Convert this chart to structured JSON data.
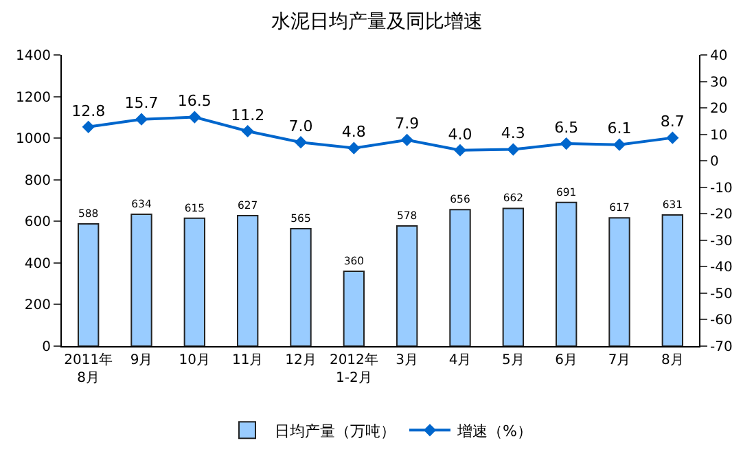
{
  "chart_data": {
    "type": "bar",
    "title": "水泥日均产量及同比增速",
    "categories": [
      "2011年\n8月",
      "9月",
      "10月",
      "11月",
      "12月",
      "2012年\n1-2月",
      "3月",
      "4月",
      "5月",
      "6月",
      "7月",
      "8月"
    ],
    "series": [
      {
        "name": "日均产量（万吨）",
        "color": "#99ccff",
        "values": [
          588,
          634,
          615,
          627,
          565,
          360,
          578,
          656,
          662,
          691,
          617,
          631
        ],
        "value_labels": [
          "588",
          "634",
          "615",
          "627",
          "565",
          "360",
          "578",
          "656",
          "662",
          "691",
          "617",
          "631"
        ]
      },
      {
        "name": "增速（%）",
        "type": "line",
        "axis": "y2",
        "color": "#0066cc",
        "marker": "diamond",
        "values": [
          12.8,
          15.7,
          16.5,
          11.2,
          7.0,
          4.8,
          7.9,
          4.0,
          4.3,
          6.5,
          6.1,
          8.7
        ],
        "value_labels": [
          "12.8",
          "15.7",
          "16.5",
          "11.2",
          "7.0",
          "4.8",
          "7.9",
          "4.0",
          "4.3",
          "6.5",
          "6.1",
          "8.7"
        ]
      }
    ],
    "ylim": [
      0,
      1400
    ],
    "yticks": [
      0,
      200,
      400,
      600,
      800,
      1000,
      1200,
      1400
    ],
    "y2lim": [
      -70,
      40
    ],
    "y2ticks": [
      -70,
      -60,
      -50,
      -40,
      -30,
      -20,
      -10,
      0,
      10,
      20,
      30,
      40
    ],
    "legend": "bottom"
  }
}
